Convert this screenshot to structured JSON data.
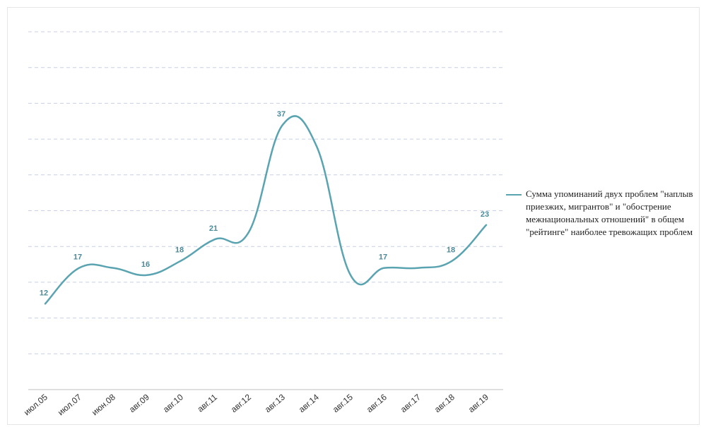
{
  "chart_data": {
    "type": "line",
    "categories": [
      "июл.05",
      "июл.07",
      "июн.08",
      "авг.09",
      "авг.10",
      "авг.11",
      "авг.12",
      "авг.13",
      "авг.14",
      "авг.15",
      "авг.16",
      "авг.17",
      "авг.18",
      "авг.19"
    ],
    "series": [
      {
        "name": "Сумма упоминаний двух проблем \"наплыв приезжих, мигрантов\" и \"обострение межнациональных отношений\" в общем \"рейтинге\" наиболее тревожащих проблем",
        "values": [
          12,
          17,
          17,
          16,
          18,
          21,
          22,
          37,
          34,
          16,
          17,
          17,
          18,
          23
        ],
        "labels": [
          "12",
          "17",
          "",
          "16",
          "18",
          "21",
          "",
          "37",
          "",
          "",
          "17",
          "",
          "18",
          "23"
        ]
      }
    ],
    "ylim": [
      0,
      50
    ],
    "gridlines": "dashed-horizontal",
    "legend_position": "right",
    "colors": {
      "line": "#5aa3b1",
      "label": "#4a8a9a",
      "grid": "#c8cfe6",
      "axis": "#bfbfbf"
    }
  }
}
